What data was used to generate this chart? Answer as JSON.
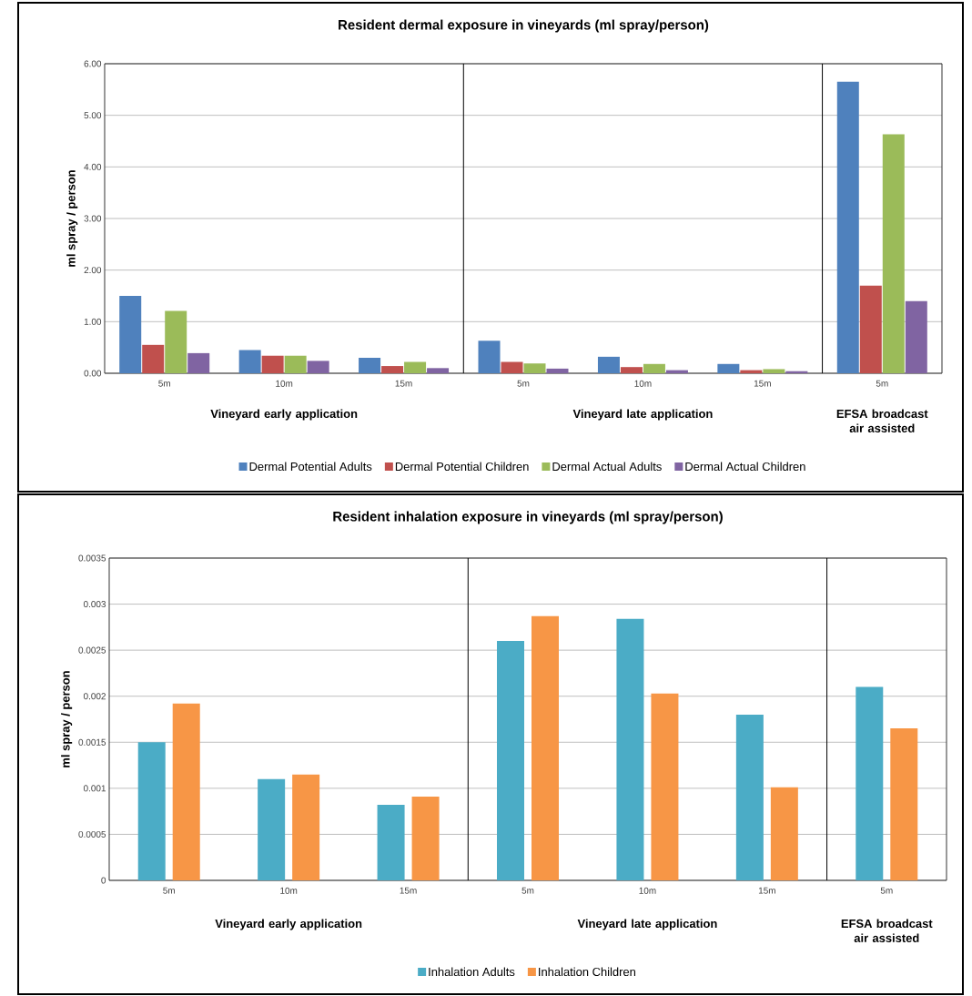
{
  "chart_data": [
    {
      "type": "bar",
      "title": "Resident dermal exposure in vineyards (ml spray/person)",
      "ylabel": "ml spray / person",
      "categories": [
        "5m",
        "10m",
        "15m",
        "5m",
        "10m",
        "15m",
        "5m"
      ],
      "annotations": [
        "Vineyard early application",
        "Vineyard late application",
        "EFSA broadcast air assisted"
      ],
      "series": [
        {
          "name": "Dermal Potential Adults",
          "color": "#4f81bd",
          "values": [
            1.5,
            0.45,
            0.3,
            0.63,
            0.32,
            0.18,
            5.65
          ]
        },
        {
          "name": "Dermal Potential Children",
          "color": "#c0504d",
          "values": [
            0.55,
            0.34,
            0.14,
            0.22,
            0.12,
            0.06,
            1.7
          ]
        },
        {
          "name": "Dermal Actual Adults",
          "color": "#9bbb59",
          "values": [
            1.21,
            0.34,
            0.22,
            0.19,
            0.18,
            0.08,
            4.63
          ]
        },
        {
          "name": "Dermal Actual Children",
          "color": "#8064a2",
          "values": [
            0.39,
            0.24,
            0.1,
            0.09,
            0.06,
            0.04,
            1.4
          ]
        }
      ],
      "ylim": [
        0,
        6
      ],
      "yticks": [
        {
          "value": 0,
          "label": "0.00"
        },
        {
          "value": 1,
          "label": "1.00"
        },
        {
          "value": 2,
          "label": "2.00"
        },
        {
          "value": 3,
          "label": "3.00"
        },
        {
          "value": 4,
          "label": "4.00"
        },
        {
          "value": 5,
          "label": "5.00"
        },
        {
          "value": 6,
          "label": "6.00"
        }
      ],
      "grid": "y",
      "legend": "bottom"
    },
    {
      "type": "bar",
      "title": "Resident inhalation exposure in vineyards (ml spray/person)",
      "ylabel": "ml spray / person",
      "categories": [
        "5m",
        "10m",
        "15m",
        "5m",
        "10m",
        "15m",
        "5m"
      ],
      "annotations": [
        "Vineyard early application",
        "Vineyard late application",
        "EFSA broadcast air assisted"
      ],
      "series": [
        {
          "name": "Inhalation Adults",
          "color": "#4bacc6",
          "values": [
            0.0015,
            0.0011,
            0.00082,
            0.0026,
            0.00284,
            0.0018,
            0.0021
          ]
        },
        {
          "name": "Inhalation Children",
          "color": "#f79646",
          "values": [
            0.00192,
            0.00115,
            0.00091,
            0.00287,
            0.00203,
            0.00101,
            0.00165
          ]
        }
      ],
      "ylim": [
        0,
        0.0035
      ],
      "yticks": [
        0,
        0.0005,
        0.001,
        0.0015,
        0.002,
        0.0025,
        0.003,
        0.0035
      ],
      "grid": "y",
      "legend": "bottom"
    }
  ]
}
